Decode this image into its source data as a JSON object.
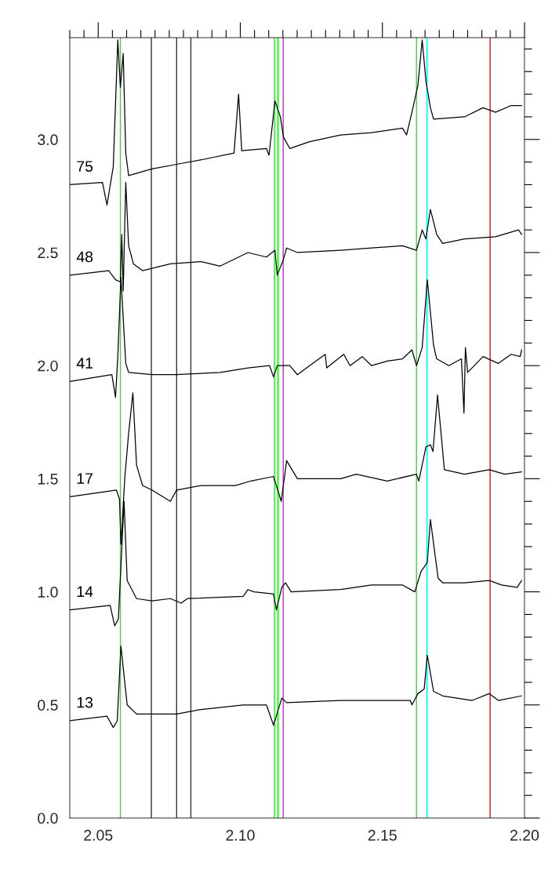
{
  "chart_data": {
    "type": "line",
    "xlim": [
      2.04,
      2.2
    ],
    "ylim": [
      0,
      3.45
    ],
    "xticks": [
      {
        "value": 2.04,
        "label": null
      },
      {
        "value": 2.045,
        "label": null
      },
      {
        "value": 2.05,
        "label": "2.05"
      },
      {
        "value": 2.055,
        "label": null
      },
      {
        "value": 2.06,
        "label": null
      },
      {
        "value": 2.065,
        "label": null
      },
      {
        "value": 2.07,
        "label": null
      },
      {
        "value": 2.075,
        "label": null
      },
      {
        "value": 2.08,
        "label": null
      },
      {
        "value": 2.085,
        "label": null
      },
      {
        "value": 2.09,
        "label": null
      },
      {
        "value": 2.095,
        "label": null
      },
      {
        "value": 2.1,
        "label": "2.10"
      },
      {
        "value": 2.105,
        "label": null
      },
      {
        "value": 2.11,
        "label": null
      },
      {
        "value": 2.115,
        "label": null
      },
      {
        "value": 2.12,
        "label": null
      },
      {
        "value": 2.125,
        "label": null
      },
      {
        "value": 2.13,
        "label": null
      },
      {
        "value": 2.135,
        "label": null
      },
      {
        "value": 2.14,
        "label": null
      },
      {
        "value": 2.145,
        "label": null
      },
      {
        "value": 2.15,
        "label": "2.15"
      },
      {
        "value": 2.155,
        "label": null
      },
      {
        "value": 2.16,
        "label": null
      },
      {
        "value": 2.165,
        "label": null
      },
      {
        "value": 2.17,
        "label": null
      },
      {
        "value": 2.175,
        "label": null
      },
      {
        "value": 2.18,
        "label": null
      },
      {
        "value": 2.185,
        "label": null
      },
      {
        "value": 2.19,
        "label": null
      },
      {
        "value": 2.195,
        "label": null
      },
      {
        "value": 2.2,
        "label": "2.20"
      }
    ],
    "yticks": [
      {
        "value": 0,
        "label": "0.0"
      },
      {
        "value": 0.1,
        "label": null
      },
      {
        "value": 0.2,
        "label": null
      },
      {
        "value": 0.3,
        "label": null
      },
      {
        "value": 0.4,
        "label": null
      },
      {
        "value": 0.5,
        "label": "0.5"
      },
      {
        "value": 0.6,
        "label": null
      },
      {
        "value": 0.7,
        "label": null
      },
      {
        "value": 0.8,
        "label": null
      },
      {
        "value": 0.9,
        "label": null
      },
      {
        "value": 1.0,
        "label": "1.0"
      },
      {
        "value": 1.1,
        "label": null
      },
      {
        "value": 1.2,
        "label": null
      },
      {
        "value": 1.3,
        "label": null
      },
      {
        "value": 1.4,
        "label": null
      },
      {
        "value": 1.5,
        "label": "1.5"
      },
      {
        "value": 1.6,
        "label": null
      },
      {
        "value": 1.7,
        "label": null
      },
      {
        "value": 1.8,
        "label": null
      },
      {
        "value": 1.9,
        "label": null
      },
      {
        "value": 2.0,
        "label": "2.0"
      },
      {
        "value": 2.1,
        "label": null
      },
      {
        "value": 2.2,
        "label": null
      },
      {
        "value": 2.3,
        "label": null
      },
      {
        "value": 2.4,
        "label": null
      },
      {
        "value": 2.5,
        "label": "2.5"
      },
      {
        "value": 2.6,
        "label": null
      },
      {
        "value": 2.7,
        "label": null
      },
      {
        "value": 2.8,
        "label": null
      },
      {
        "value": 2.9,
        "label": null
      },
      {
        "value": 3.0,
        "label": "3.0"
      },
      {
        "value": 3.1,
        "label": null
      },
      {
        "value": 3.2,
        "label": null
      },
      {
        "value": 3.3,
        "label": null
      },
      {
        "value": 3.4,
        "label": null
      }
    ],
    "ref_lines": [
      {
        "axis": "x",
        "value": 2.0578,
        "color": "#00ff00"
      },
      {
        "axis": "x",
        "value": 2.0687,
        "color": "#333333"
      },
      {
        "axis": "x",
        "value": 2.0776,
        "color": "#333333"
      },
      {
        "axis": "x",
        "value": 2.0826,
        "color": "#333333"
      },
      {
        "axis": "x",
        "value": 2.112,
        "color": "#00ff00"
      },
      {
        "axis": "x",
        "value": 2.1132,
        "color": "#00ff00"
      },
      {
        "axis": "x",
        "value": 2.1151,
        "color": "#ff00ff"
      },
      {
        "axis": "x",
        "value": 2.162,
        "color": "#00ff00"
      },
      {
        "axis": "x",
        "value": 2.1656,
        "color": "#00ffff"
      },
      {
        "axis": "x",
        "value": 2.1879,
        "color": "#ff0000"
      }
    ],
    "series": [
      {
        "name": "75",
        "color": "#000000",
        "x": [
          2.04,
          2.0515,
          2.0531,
          2.0553,
          2.0569,
          2.0578,
          2.0588,
          2.0597,
          2.0607,
          2.0689,
          2.0776,
          2.0863,
          2.0978,
          2.0994,
          2.1005,
          2.1092,
          2.1101,
          2.1122,
          2.1141,
          2.1152,
          2.1174,
          2.1244,
          2.1353,
          2.1462,
          2.1571,
          2.1585,
          2.1604,
          2.1625,
          2.164,
          2.1653,
          2.1669,
          2.168,
          2.1789,
          2.1854,
          2.1898,
          2.1953,
          2.199
        ],
        "values": [
          2.8,
          2.81,
          2.71,
          2.88,
          3.44,
          3.23,
          3.38,
          2.94,
          2.84,
          2.87,
          2.89,
          2.91,
          2.94,
          3.2,
          2.95,
          2.96,
          2.93,
          3.17,
          3.1,
          3.01,
          2.96,
          2.99,
          3.02,
          3.03,
          3.05,
          3.02,
          3.12,
          3.24,
          3.44,
          3.26,
          3.14,
          3.09,
          3.1,
          3.14,
          3.12,
          3.15,
          3.15
        ]
      },
      {
        "name": "48",
        "color": "#000000",
        "x": [
          2.04,
          2.0537,
          2.0561,
          2.0578,
          2.0583,
          2.0588,
          2.0597,
          2.0607,
          2.0624,
          2.0656,
          2.0754,
          2.0863,
          2.0929,
          2.1027,
          2.1092,
          2.1122,
          2.113,
          2.1152,
          2.1163,
          2.1201,
          2.1353,
          2.1462,
          2.1571,
          2.162,
          2.164,
          2.1653,
          2.1669,
          2.1691,
          2.1712,
          2.1789,
          2.1898,
          2.1979,
          2.199
        ],
        "values": [
          2.4,
          2.42,
          2.38,
          2.37,
          2.58,
          2.33,
          2.81,
          2.53,
          2.45,
          2.42,
          2.45,
          2.46,
          2.44,
          2.5,
          2.48,
          2.51,
          2.4,
          2.47,
          2.52,
          2.5,
          2.51,
          2.52,
          2.53,
          2.51,
          2.6,
          2.56,
          2.69,
          2.58,
          2.54,
          2.56,
          2.57,
          2.6,
          2.58
        ]
      },
      {
        "name": "41",
        "color": "#000000",
        "x": [
          2.04,
          2.0548,
          2.0561,
          2.0569,
          2.058,
          2.0597,
          2.0607,
          2.0689,
          2.0776,
          2.0929,
          2.1027,
          2.1103,
          2.1117,
          2.113,
          2.1174,
          2.1201,
          2.1244,
          2.1299,
          2.1304,
          2.1364,
          2.1386,
          2.1429,
          2.1462,
          2.1517,
          2.1571,
          2.1604,
          2.162,
          2.164,
          2.1658,
          2.168,
          2.1691,
          2.1734,
          2.1778,
          2.1787,
          2.1792,
          2.18,
          2.1854,
          2.1908,
          2.1953,
          2.1985,
          2.199
        ],
        "values": [
          1.93,
          1.96,
          1.86,
          2.04,
          2.39,
          2.01,
          1.97,
          1.96,
          1.96,
          1.97,
          1.99,
          2.0,
          1.95,
          2.0,
          2.0,
          1.96,
          2.0,
          2.05,
          1.99,
          2.05,
          2.0,
          2.04,
          2.0,
          2.02,
          2.03,
          2.07,
          2.0,
          2.08,
          2.38,
          2.09,
          2.03,
          2.0,
          2.03,
          1.79,
          2.08,
          1.97,
          2.04,
          2.01,
          2.05,
          2.04,
          2.07
        ]
      },
      {
        "name": "17",
        "color": "#000000",
        "x": [
          2.04,
          2.0564,
          2.0575,
          2.058,
          2.0594,
          2.0607,
          2.0622,
          2.0635,
          2.0656,
          2.0689,
          2.0754,
          2.0776,
          2.0863,
          2.0983,
          2.1037,
          2.1117,
          2.1144,
          2.1163,
          2.1201,
          2.1353,
          2.1408,
          2.1517,
          2.162,
          2.1628,
          2.1653,
          2.1669,
          2.1678,
          2.1694,
          2.1718,
          2.1789,
          2.1876,
          2.193,
          2.199
        ],
        "values": [
          1.42,
          1.45,
          1.41,
          1.21,
          1.51,
          1.7,
          1.88,
          1.56,
          1.47,
          1.45,
          1.4,
          1.45,
          1.47,
          1.47,
          1.49,
          1.51,
          1.4,
          1.58,
          1.5,
          1.5,
          1.52,
          1.49,
          1.52,
          1.49,
          1.64,
          1.65,
          1.62,
          1.87,
          1.54,
          1.52,
          1.54,
          1.52,
          1.53
        ]
      },
      {
        "name": "14",
        "color": "#000000",
        "x": [
          2.04,
          2.0542,
          2.0558,
          2.0571,
          2.0591,
          2.0602,
          2.0635,
          2.0689,
          2.0754,
          2.0792,
          2.0814,
          2.101,
          2.1027,
          2.1048,
          2.1117,
          2.1127,
          2.1146,
          2.1159,
          2.1179,
          2.1353,
          2.1462,
          2.1571,
          2.1614,
          2.1636,
          2.1658,
          2.1669,
          2.1696,
          2.1712,
          2.1789,
          2.1876,
          2.1919,
          2.1974,
          2.199
        ],
        "values": [
          0.92,
          0.94,
          0.85,
          0.88,
          1.4,
          1.05,
          0.97,
          0.96,
          0.97,
          0.95,
          0.97,
          0.98,
          1.01,
          1.0,
          0.99,
          0.92,
          1.02,
          1.04,
          1.0,
          1.01,
          1.03,
          1.03,
          1.0,
          1.09,
          1.13,
          1.32,
          1.06,
          1.04,
          1.04,
          1.05,
          1.03,
          1.02,
          1.05
        ]
      },
      {
        "name": "13",
        "color": "#000000",
        "x": [
          2.04,
          2.0531,
          2.0553,
          2.0567,
          2.058,
          2.0602,
          2.0635,
          2.0776,
          2.0863,
          2.101,
          2.1092,
          2.1117,
          2.1146,
          2.1163,
          2.1353,
          2.1462,
          2.1598,
          2.1604,
          2.1625,
          2.1647,
          2.1658,
          2.168,
          2.1712,
          2.1816,
          2.1876,
          2.1908,
          2.199
        ],
        "values": [
          0.43,
          0.45,
          0.4,
          0.43,
          0.76,
          0.5,
          0.46,
          0.46,
          0.48,
          0.5,
          0.5,
          0.41,
          0.53,
          0.51,
          0.52,
          0.52,
          0.52,
          0.5,
          0.55,
          0.57,
          0.72,
          0.56,
          0.54,
          0.52,
          0.55,
          0.52,
          0.54
        ]
      }
    ]
  }
}
